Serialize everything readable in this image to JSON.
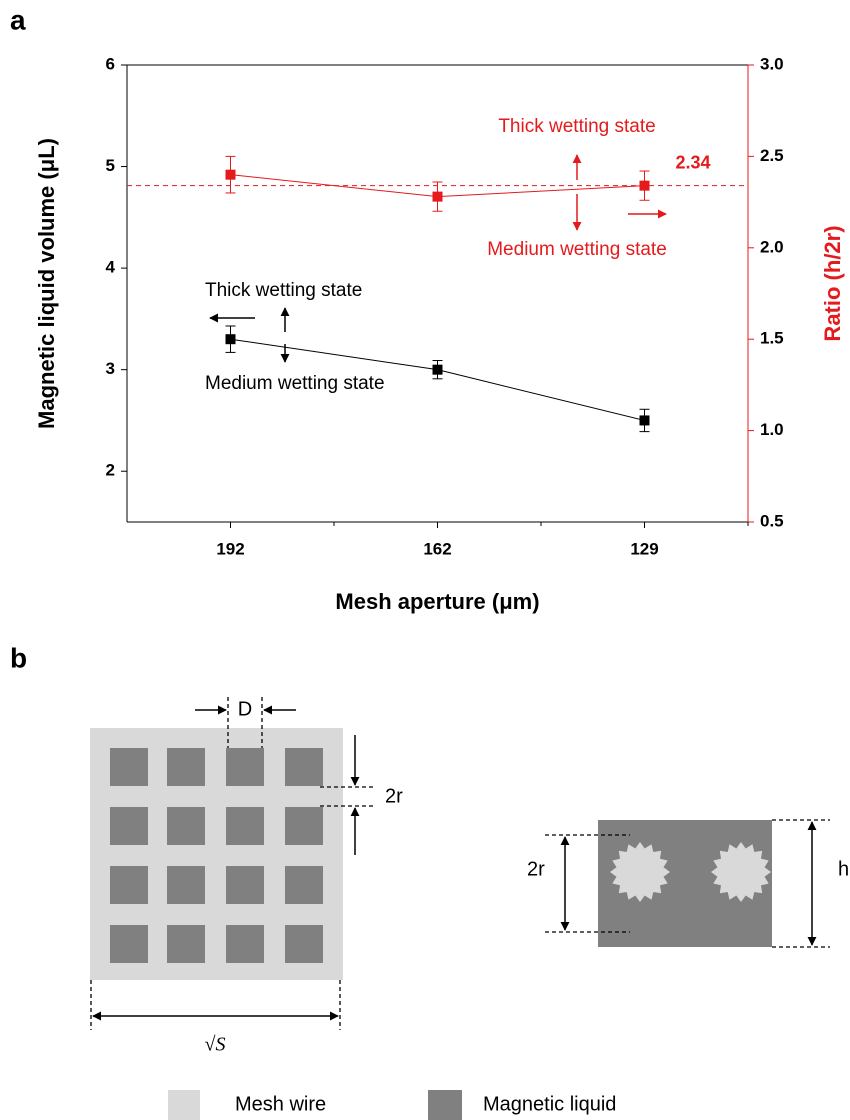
{
  "panel_labels": [
    "a",
    "b"
  ],
  "chart_data": {
    "type": "line",
    "x_label": "Mesh aperture (μm)",
    "y_label": "Magnetic liquid volume (μL)",
    "y2_label": "Ratio (h/2r)",
    "y2_color": "#e41a1c",
    "categories": [
      "192",
      "162",
      "129"
    ],
    "series": [
      {
        "color": "#000000",
        "values": [
          3.3,
          3.0,
          2.5
        ],
        "errors": [
          0.13,
          0.09,
          0.11
        ]
      },
      {
        "color": "#e41a1c",
        "axis": "y2",
        "values": [
          2.4,
          2.28,
          2.34
        ],
        "errors": [
          0.1,
          0.08,
          0.08
        ]
      }
    ],
    "ylim": [
      1.5,
      6
    ],
    "yticks": [
      2,
      3,
      4,
      5,
      6
    ],
    "y2lim": [
      0.5,
      3
    ],
    "y2ticks": [
      0.5,
      {
        "value": 1,
        "label": "1.0"
      },
      1.5,
      {
        "value": 2,
        "label": "2.0"
      },
      2.5,
      {
        "value": 3,
        "label": "3.0"
      }
    ],
    "reference_line": {
      "value": 2.34,
      "axis": "y2",
      "color": "#e41a1c"
    },
    "annotations": [
      {
        "text": "Thick wetting state",
        "color": "#e41a1c"
      },
      {
        "text": "Medium wetting state",
        "color": "#e41a1c"
      },
      {
        "text": "Thick wetting state",
        "color": "#000000"
      },
      {
        "text": "Medium wetting state",
        "color": "#000000"
      }
    ]
  },
  "diagram": {
    "labels": [
      "D",
      "2r",
      "2r",
      "h",
      "√S"
    ],
    "legend": [
      "Mesh wire",
      "Magnetic liquid"
    ]
  }
}
